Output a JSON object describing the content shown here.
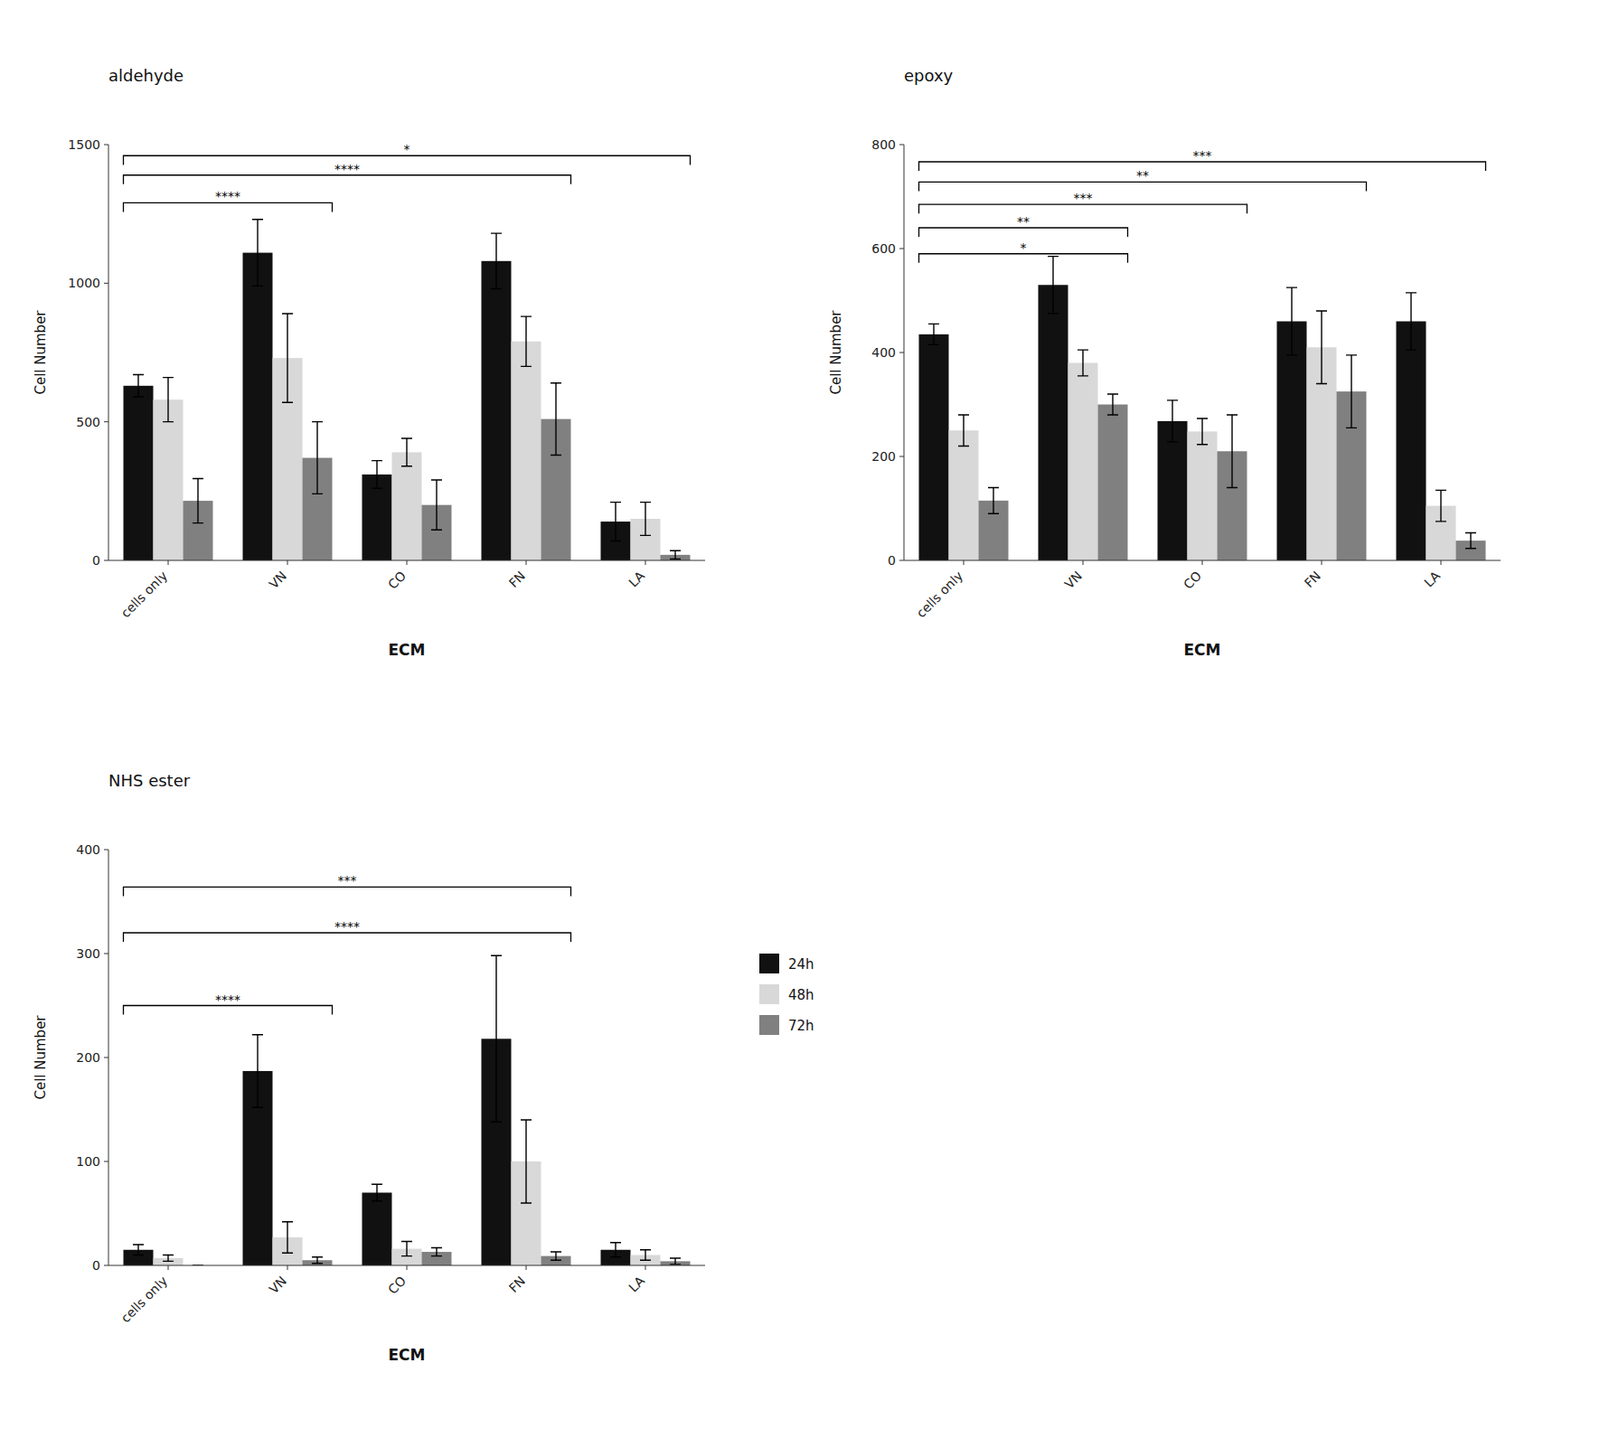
{
  "chart_data": [
    {
      "type": "bar",
      "title": "aldehyde",
      "xlabel": "ECM",
      "ylabel": "Cell Number",
      "categories": [
        "cells only",
        "VN",
        "CO",
        "FN",
        "LA"
      ],
      "series": [
        {
          "name": "24h",
          "color": "#111111",
          "values": [
            630,
            1110,
            310,
            1080,
            140
          ],
          "errors": [
            40,
            120,
            50,
            100,
            70
          ]
        },
        {
          "name": "48h",
          "color": "#d8d8d8",
          "values": [
            580,
            730,
            390,
            790,
            150
          ],
          "errors": [
            80,
            160,
            50,
            90,
            60
          ]
        },
        {
          "name": "72h",
          "color": "#808080",
          "values": [
            215,
            370,
            200,
            510,
            20
          ],
          "errors": [
            80,
            130,
            90,
            130,
            15
          ]
        }
      ],
      "ylim": [
        0,
        1500
      ],
      "yticks": [
        0,
        500,
        1000,
        1500
      ],
      "grid": false,
      "annotations": [
        {
          "x1": "cells only",
          "x2": "VN",
          "y": 1290,
          "text": "****"
        },
        {
          "x1": "cells only",
          "x2": "FN",
          "y": 1390,
          "text": "****"
        },
        {
          "x1": "cells only",
          "x2": "LA",
          "y": 1460,
          "text": "*"
        }
      ]
    },
    {
      "type": "bar",
      "title": "epoxy",
      "xlabel": "ECM",
      "ylabel": "Cell Number",
      "categories": [
        "cells only",
        "VN",
        "CO",
        "FN",
        "LA"
      ],
      "series": [
        {
          "name": "24h",
          "color": "#111111",
          "values": [
            435,
            530,
            268,
            460,
            460
          ],
          "errors": [
            20,
            55,
            40,
            65,
            55
          ]
        },
        {
          "name": "48h",
          "color": "#d8d8d8",
          "values": [
            250,
            380,
            248,
            410,
            105
          ],
          "errors": [
            30,
            25,
            25,
            70,
            30
          ]
        },
        {
          "name": "72h",
          "color": "#808080",
          "values": [
            115,
            300,
            210,
            325,
            38
          ],
          "errors": [
            25,
            20,
            70,
            70,
            15
          ]
        }
      ],
      "ylim": [
        0,
        800
      ],
      "yticks": [
        0,
        200,
        400,
        600,
        800
      ],
      "grid": false,
      "annotations": [
        {
          "x1": "cells only",
          "x2": "VN",
          "y": 590,
          "text": "*"
        },
        {
          "x1": "cells only",
          "x2": "VN",
          "y": 640,
          "text": "**"
        },
        {
          "x1": "cells only",
          "x2": "CO",
          "y": 685,
          "text": "***"
        },
        {
          "x1": "cells only",
          "x2": "FN",
          "y": 728,
          "text": "**"
        },
        {
          "x1": "cells only",
          "x2": "LA",
          "y": 767,
          "text": "***"
        }
      ]
    },
    {
      "type": "bar",
      "title": "NHS ester",
      "xlabel": "ECM",
      "ylabel": "Cell Number",
      "categories": [
        "cells only",
        "VN",
        "CO",
        "FN",
        "LA"
      ],
      "series": [
        {
          "name": "24h",
          "color": "#111111",
          "values": [
            15,
            187,
            70,
            218,
            15
          ],
          "errors": [
            5,
            35,
            8,
            80,
            7
          ]
        },
        {
          "name": "48h",
          "color": "#d8d8d8",
          "values": [
            7,
            27,
            16,
            100,
            10
          ],
          "errors": [
            3,
            15,
            7,
            40,
            5
          ]
        },
        {
          "name": "72h",
          "color": "#808080",
          "values": [
            0,
            5,
            13,
            9,
            4
          ],
          "errors": [
            0,
            3,
            4,
            4,
            3
          ]
        }
      ],
      "ylim": [
        0,
        400
      ],
      "yticks": [
        0,
        100,
        200,
        300,
        400
      ],
      "grid": false,
      "legend": "right",
      "annotations": [
        {
          "x1": "cells only",
          "x2": "VN",
          "y": 250,
          "text": "****"
        },
        {
          "x1": "cells only",
          "x2": "FN",
          "y": 320,
          "text": "****"
        },
        {
          "x1": "cells only",
          "x2": "FN",
          "y": 364,
          "text": "***"
        }
      ]
    }
  ]
}
